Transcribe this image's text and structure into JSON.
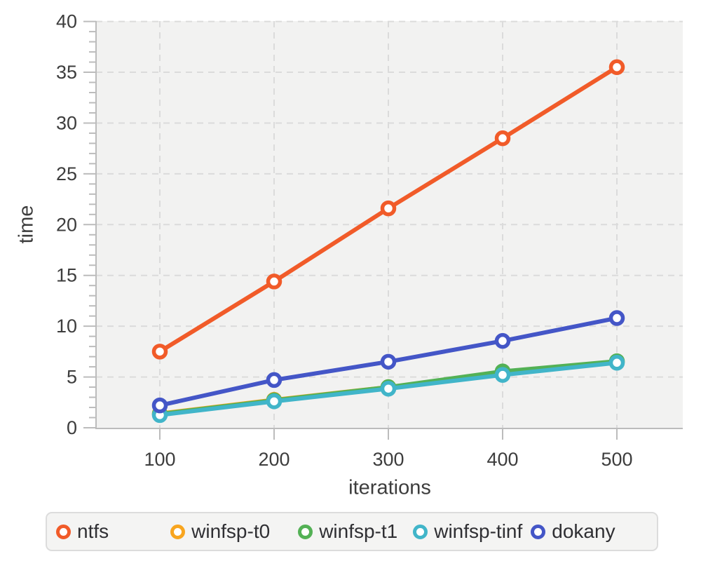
{
  "chart_data": {
    "type": "line",
    "title": "",
    "xlabel": "iterations",
    "ylabel": "time",
    "x": [
      100,
      200,
      300,
      400,
      500
    ],
    "x_ticks": [
      100,
      200,
      300,
      400,
      500
    ],
    "y_ticks": [
      0,
      5,
      10,
      15,
      20,
      25,
      30,
      35,
      40
    ],
    "y_minor_step": 1,
    "ylim": [
      0,
      40
    ],
    "grid": "dashed, horizontal and vertical at major ticks",
    "legend_position": "bottom",
    "marker": "open-circle",
    "series": [
      {
        "name": "ntfs",
        "color": "#f15b29",
        "values": [
          7.5,
          14.4,
          21.6,
          28.5,
          35.5
        ]
      },
      {
        "name": "winfsp-t0",
        "color": "#f8a51f",
        "values": [
          1.4,
          2.75,
          4.0,
          5.35,
          6.5
        ]
      },
      {
        "name": "winfsp-t1",
        "color": "#53b155",
        "values": [
          1.35,
          2.7,
          4.0,
          5.55,
          6.55
        ]
      },
      {
        "name": "winfsp-tinf",
        "color": "#41b5c9",
        "values": [
          1.25,
          2.6,
          3.85,
          5.2,
          6.4
        ]
      },
      {
        "name": "dokany",
        "color": "#4456c7",
        "values": [
          2.2,
          4.7,
          6.5,
          8.55,
          10.8
        ]
      }
    ]
  },
  "colors": {
    "plot_bg": "#f2f2f1",
    "grid": "#dbdbdb",
    "axis": "#bcbcbc",
    "text": "#3d3d3d",
    "legend_bg": "#f4f4f3",
    "legend_border": "#dcdcdc"
  }
}
